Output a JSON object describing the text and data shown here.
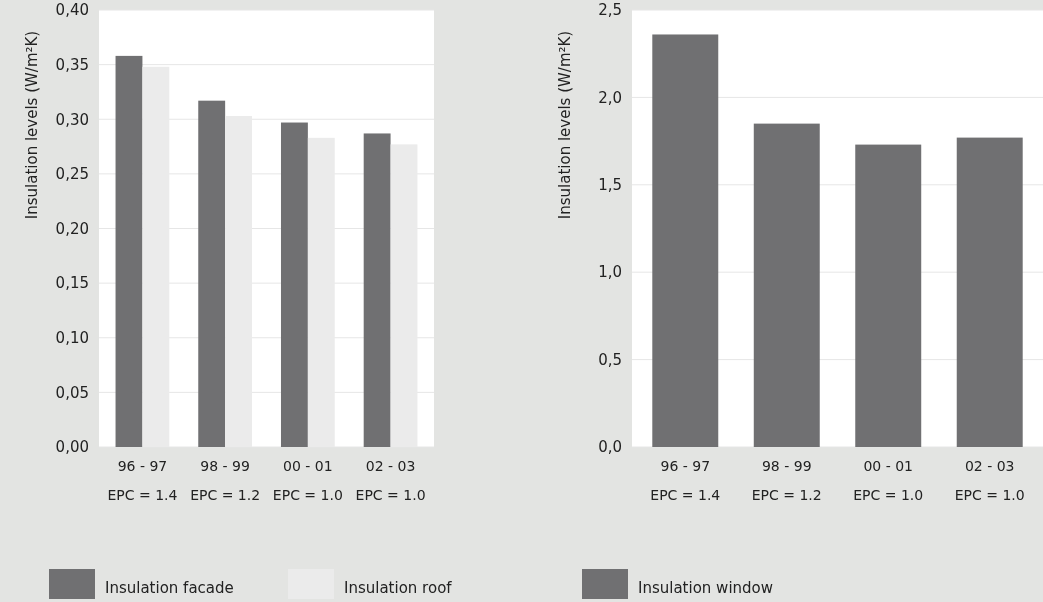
{
  "chart_data": [
    {
      "type": "bar",
      "ylabel": "Insulation levels (W/m²K)",
      "categories": [
        "96 - 97\nEPC = 1.4",
        "98 - 99\nEPC = 1.2",
        "00 - 01\nEPC = 1.0",
        "02 - 03\nEPC = 1.0"
      ],
      "series": [
        {
          "name": "Insulation facade",
          "color": "#707072",
          "values": [
            0.358,
            0.317,
            0.297,
            0.287
          ]
        },
        {
          "name": "Insulation roof",
          "color": "#ebebeb",
          "values": [
            0.348,
            0.303,
            0.283,
            0.277
          ]
        }
      ],
      "ylim": [
        0,
        0.4
      ],
      "yticks": [
        {
          "value": 0,
          "label": "0,00"
        },
        {
          "value": 0.05,
          "label": "0,05"
        },
        {
          "value": 0.1,
          "label": "0,10"
        },
        {
          "value": 0.15,
          "label": "0,15"
        },
        {
          "value": 0.2,
          "label": "0,20"
        },
        {
          "value": 0.25,
          "label": "0,25"
        },
        {
          "value": 0.3,
          "label": "0,30"
        },
        {
          "value": 0.35,
          "label": "0,35"
        },
        {
          "value": 0.4,
          "label": "0,40"
        }
      ],
      "grid": "y",
      "legend": "bottom"
    },
    {
      "type": "bar",
      "ylabel": "Insulation levels (W/m²K)",
      "categories": [
        "96 - 97\nEPC = 1.4",
        "98 - 99\nEPC = 1.2",
        "00 - 01\nEPC = 1.0",
        "02 - 03\nEPC = 1.0"
      ],
      "series": [
        {
          "name": "Insulation window",
          "color": "#707072",
          "values": [
            2.36,
            1.85,
            1.73,
            1.77
          ]
        }
      ],
      "ylim": [
        0,
        2.5
      ],
      "yticks": [
        {
          "value": 0,
          "label": "0,0"
        },
        {
          "value": 0.5,
          "label": "0,5"
        },
        {
          "value": 1,
          "label": "1,0"
        },
        {
          "value": 1.5,
          "label": "1,5"
        },
        {
          "value": 2,
          "label": "2,0"
        },
        {
          "value": 2.5,
          "label": "2,5"
        }
      ],
      "grid": "y",
      "legend": "bottom"
    }
  ]
}
